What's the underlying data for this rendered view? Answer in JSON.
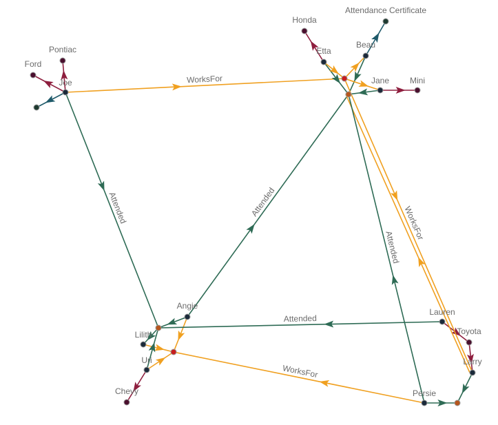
{
  "colors": {
    "attended": "#2e6b55",
    "worksfor": "#f0a020",
    "owns": "#8e1e3e",
    "has": "#1f5a6a",
    "person_node": "#1b2a3a",
    "car_node": "#4a0f2e",
    "certificate_node": "#1e3a30",
    "company_node": "#c81e1e",
    "school_node": "#b5561e",
    "label": "#6b6b6b"
  },
  "nodes": [
    {
      "id": "joe",
      "label": "Joe",
      "kind": "person"
    },
    {
      "id": "pontiac",
      "label": "Pontiac",
      "kind": "car"
    },
    {
      "id": "ford",
      "label": "Ford",
      "kind": "car"
    },
    {
      "id": "joe_cert",
      "label": "",
      "kind": "certificate"
    },
    {
      "id": "honda",
      "label": "Honda",
      "kind": "car"
    },
    {
      "id": "etta",
      "label": "Etta",
      "kind": "person"
    },
    {
      "id": "beau",
      "label": "Beau",
      "kind": "person"
    },
    {
      "id": "att_cert",
      "label": "Attendance Certificate",
      "kind": "certificate"
    },
    {
      "id": "company1",
      "label": "",
      "kind": "company"
    },
    {
      "id": "school1",
      "label": "",
      "kind": "school"
    },
    {
      "id": "jane",
      "label": "Jane",
      "kind": "person"
    },
    {
      "id": "mini",
      "label": "Mini",
      "kind": "car"
    },
    {
      "id": "angie",
      "label": "Angie",
      "kind": "person"
    },
    {
      "id": "school2",
      "label": "",
      "kind": "school"
    },
    {
      "id": "lilith",
      "label": "Lilith",
      "kind": "person"
    },
    {
      "id": "company2",
      "label": "",
      "kind": "company"
    },
    {
      "id": "uri",
      "label": "Uri",
      "kind": "person"
    },
    {
      "id": "chevy",
      "label": "Chevy",
      "kind": "car"
    },
    {
      "id": "lauren",
      "label": "Lauren",
      "kind": "person"
    },
    {
      "id": "toyota",
      "label": "Toyota",
      "kind": "car"
    },
    {
      "id": "larry",
      "label": "Larry",
      "kind": "person"
    },
    {
      "id": "persie",
      "label": "Persie",
      "kind": "person"
    },
    {
      "id": "school3",
      "label": "",
      "kind": "school"
    }
  ],
  "edges": [
    {
      "from": "joe",
      "to": "pontiac",
      "type": "owns",
      "label": ""
    },
    {
      "from": "joe",
      "to": "ford",
      "type": "owns",
      "label": ""
    },
    {
      "from": "joe",
      "to": "joe_cert",
      "type": "has",
      "label": ""
    },
    {
      "from": "joe",
      "to": "company1",
      "type": "worksfor",
      "label": "WorksFor"
    },
    {
      "from": "joe",
      "to": "school2",
      "type": "attended",
      "label": "Attended"
    },
    {
      "from": "etta",
      "to": "honda",
      "type": "owns",
      "label": ""
    },
    {
      "from": "etta",
      "to": "school1",
      "type": "attended",
      "label": ""
    },
    {
      "from": "etta",
      "to": "company1",
      "type": "worksfor",
      "label": ""
    },
    {
      "from": "beau",
      "to": "att_cert",
      "type": "has",
      "label": ""
    },
    {
      "from": "beau",
      "to": "school1",
      "type": "attended",
      "label": ""
    },
    {
      "from": "company1",
      "to": "beau",
      "type": "worksfor",
      "label": ""
    },
    {
      "from": "company1",
      "to": "jane",
      "type": "worksfor",
      "label": ""
    },
    {
      "from": "jane",
      "to": "school1",
      "type": "attended",
      "label": ""
    },
    {
      "from": "jane",
      "to": "mini",
      "type": "owns",
      "label": ""
    },
    {
      "from": "angie",
      "to": "school1",
      "type": "attended",
      "label": "Attended"
    },
    {
      "from": "angie",
      "to": "school2",
      "type": "attended",
      "label": ""
    },
    {
      "from": "angie",
      "to": "company2",
      "type": "worksfor",
      "label": ""
    },
    {
      "from": "school2",
      "to": "lilith",
      "type": "attended",
      "label": ""
    },
    {
      "from": "lilith",
      "to": "company2",
      "type": "worksfor",
      "label": ""
    },
    {
      "from": "uri",
      "to": "school2",
      "type": "attended",
      "label": ""
    },
    {
      "from": "uri",
      "to": "company2",
      "type": "worksfor",
      "label": ""
    },
    {
      "from": "uri",
      "to": "chevy",
      "type": "owns",
      "label": ""
    },
    {
      "from": "lauren",
      "to": "school2",
      "type": "attended",
      "label": "Attended"
    },
    {
      "from": "lauren",
      "to": "toyota",
      "type": "owns",
      "label": ""
    },
    {
      "from": "toyota",
      "to": "larry",
      "type": "owns",
      "label": ""
    },
    {
      "from": "larry",
      "to": "school3",
      "type": "attended",
      "label": ""
    },
    {
      "from": "company1",
      "to": "larry",
      "type": "worksfor",
      "label": "WorksFor"
    },
    {
      "from": "larry",
      "to": "school1",
      "type": "worksfor",
      "label": ""
    },
    {
      "from": "persie",
      "to": "school3",
      "type": "attended",
      "label": ""
    },
    {
      "from": "persie",
      "to": "school1",
      "type": "attended",
      "label": "Attended"
    },
    {
      "from": "persie",
      "to": "company2",
      "type": "worksfor",
      "label": "WorksFor"
    }
  ]
}
